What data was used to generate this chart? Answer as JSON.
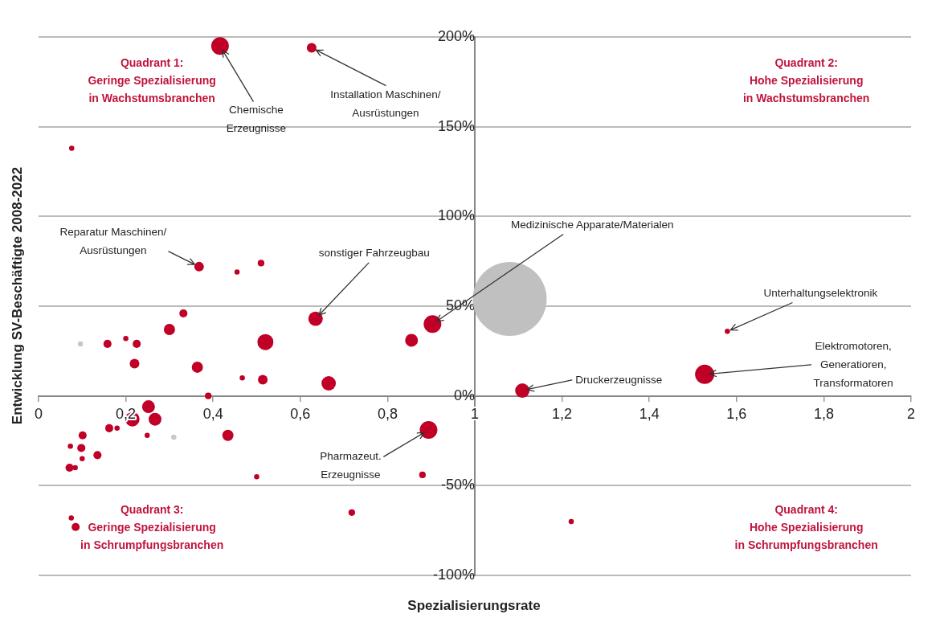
{
  "chart_data": {
    "type": "bubble",
    "xlabel": "Spezialisierungsrate",
    "ylabel": "Entwicklung SV-Beschäftigte 2008-2022",
    "xlim": [
      0,
      2
    ],
    "xticks": [
      0,
      {
        "value": 0.2,
        "label": "0,2"
      },
      {
        "value": 0.4,
        "label": "0,4"
      },
      {
        "value": 0.6,
        "label": "0,6"
      },
      {
        "value": 0.8,
        "label": "0,8"
      },
      1,
      {
        "value": 1.2,
        "label": "1,2"
      },
      {
        "value": 1.4,
        "label": "1,4"
      },
      {
        "value": 1.6,
        "label": "1,6"
      },
      {
        "value": 1.8,
        "label": "1,8"
      },
      2
    ],
    "ylim": [
      -100,
      200
    ],
    "yticks": [
      {
        "value": -100,
        "label": "-100%"
      },
      {
        "value": -50,
        "label": "-50%"
      },
      {
        "value": 0,
        "label": "0%"
      },
      {
        "value": 50,
        "label": "50%"
      },
      {
        "value": 100,
        "label": "100%"
      },
      {
        "value": 150,
        "label": "150%"
      },
      {
        "value": 200,
        "label": "200%"
      }
    ],
    "grid": "y",
    "legend": false,
    "x": [
      0.416,
      0.626,
      0.076,
      0.368,
      0.51,
      0.455,
      0.635,
      0.332,
      0.3,
      0.158,
      0.2,
      0.225,
      0.096,
      0.22,
      0.364,
      0.52,
      0.467,
      0.514,
      0.665,
      0.389,
      0.855,
      0.903,
      1.08,
      1.109,
      1.579,
      1.527,
      0.894,
      0.88,
      0.718,
      0.5,
      1.221,
      0.252,
      0.215,
      0.267,
      0.162,
      0.18,
      0.249,
      0.31,
      0.434,
      0.101,
      0.073,
      0.098,
      0.1,
      0.135,
      0.071,
      0.084,
      0.075,
      0.085
    ],
    "values": [
      195,
      194,
      138,
      72,
      74,
      69,
      43,
      46,
      37,
      29,
      32,
      29,
      29,
      18,
      16,
      30,
      10,
      9,
      7,
      0,
      31,
      40,
      54,
      3,
      36,
      12,
      -19,
      -44,
      -65,
      -45,
      -70,
      -6,
      -13,
      -13,
      -18,
      -18,
      -22,
      -23,
      -22,
      -22,
      -28,
      -29,
      -35,
      -33,
      -40,
      -40,
      -68,
      -73
    ],
    "sizes": [
      0.057,
      0.017,
      0.005,
      0.017,
      0.008,
      0.005,
      0.038,
      0.012,
      0.023,
      0.012,
      0.005,
      0.012,
      0.005,
      0.017,
      0.023,
      0.047,
      0.005,
      0.017,
      0.038,
      0.008,
      0.03,
      0.057,
      1,
      0.038,
      0.005,
      0.068,
      0.057,
      0.008,
      0.008,
      0.005,
      0.005,
      0.03,
      0.038,
      0.03,
      0.012,
      0.005,
      0.005,
      0.005,
      0.023,
      0.012,
      0.005,
      0.012,
      0.005,
      0.012,
      0.012,
      0.005,
      0.005,
      0.012
    ],
    "colors": [
      "#c00026",
      "#c00026",
      "#c00026",
      "#c00026",
      "#c00026",
      "#c00026",
      "#c00026",
      "#c00026",
      "#c00026",
      "#c00026",
      "#c00026",
      "#c00026",
      "#c8c8c8",
      "#c00026",
      "#c00026",
      "#c00026",
      "#c00026",
      "#c00026",
      "#c00026",
      "#c00026",
      "#c00026",
      "#c00026",
      "#c0c0c0",
      "#c00026",
      "#c00026",
      "#c00026",
      "#c00026",
      "#c00026",
      "#c00026",
      "#c00026",
      "#c00026",
      "#c00026",
      "#c00026",
      "#c00026",
      "#c00026",
      "#c00026",
      "#c00026",
      "#c8c8c8",
      "#c00026",
      "#c00026",
      "#c00026",
      "#c00026",
      "#c00026",
      "#c00026",
      "#c00026",
      "#c00026",
      "#c00026",
      "#c00026"
    ],
    "annotations": [
      "Quadrant 1:\nGeringe Spezialisierung\nin Wachstumsbranchen",
      "Quadrant 2:\nHohe Spezialisierung\nin Wachstumsbranchen",
      "Quadrant 3:\nGeringe Spezialisierung\nin Schrumpfungsbranchen",
      "Quadrant 4:\nHohe Spezialisierung\nin Schrumpfungsbranchen",
      {
        "text": "Chemische\nErzeugnisse",
        "x": 0.416,
        "y": 195
      },
      {
        "text": "Installation Maschinen/\nAusrüstungen",
        "x": 0.626,
        "y": 194
      },
      {
        "text": "Reparatur Maschinen/\nAusrüstungen",
        "x": 0.368,
        "y": 72
      },
      {
        "text": "sonstiger Fahrzeugbau",
        "x": 0.635,
        "y": 43
      },
      {
        "text": "Medizinische Apparate/Materialen",
        "x": 0.903,
        "y": 40
      },
      {
        "text": "Unterhaltungselektronik",
        "x": 1.579,
        "y": 36
      },
      {
        "text": "Elektromotoren,\nGeneratioren,\nTransformatoren",
        "x": 1.527,
        "y": 12
      },
      {
        "text": "Druckerzeugnisse",
        "x": 1.109,
        "y": 3
      },
      {
        "text": "Pharmazeut.\nErzeugnisse",
        "x": 0.894,
        "y": -19
      }
    ]
  }
}
